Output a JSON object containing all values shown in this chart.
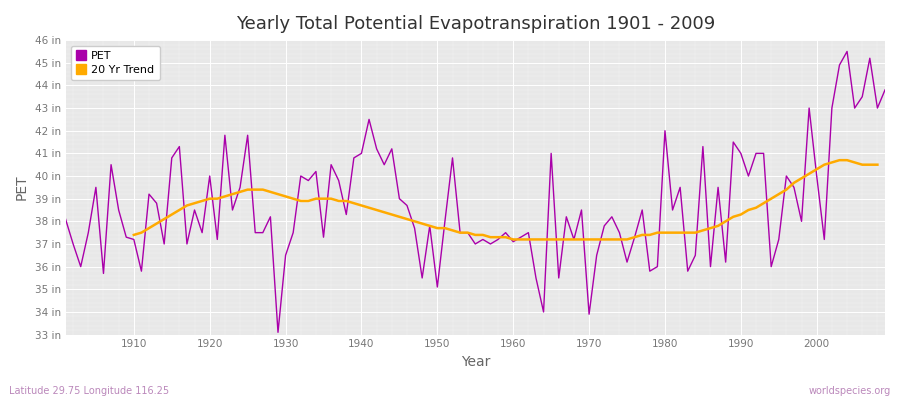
{
  "title": "Yearly Total Potential Evapotranspiration 1901 - 2009",
  "xlabel": "Year",
  "ylabel": "PET",
  "subtitle_left": "Latitude 29.75 Longitude 116.25",
  "subtitle_right": "worldspecies.org",
  "fig_background": "#ffffff",
  "plot_background": "#e8e8e8",
  "pet_color": "#aa00aa",
  "trend_color": "#ffaa00",
  "ylim_min": 33,
  "ylim_max": 46,
  "years": [
    1901,
    1902,
    1903,
    1904,
    1905,
    1906,
    1907,
    1908,
    1909,
    1910,
    1911,
    1912,
    1913,
    1914,
    1915,
    1916,
    1917,
    1918,
    1919,
    1920,
    1921,
    1922,
    1923,
    1924,
    1925,
    1926,
    1927,
    1928,
    1929,
    1930,
    1931,
    1932,
    1933,
    1934,
    1935,
    1936,
    1937,
    1938,
    1939,
    1940,
    1941,
    1942,
    1943,
    1944,
    1945,
    1946,
    1947,
    1948,
    1949,
    1950,
    1951,
    1952,
    1953,
    1954,
    1955,
    1956,
    1957,
    1958,
    1959,
    1960,
    1961,
    1962,
    1963,
    1964,
    1965,
    1966,
    1967,
    1968,
    1969,
    1970,
    1971,
    1972,
    1973,
    1974,
    1975,
    1976,
    1977,
    1978,
    1979,
    1980,
    1981,
    1982,
    1983,
    1984,
    1985,
    1986,
    1987,
    1988,
    1989,
    1990,
    1991,
    1992,
    1993,
    1994,
    1995,
    1996,
    1997,
    1998,
    1999,
    2000,
    2001,
    2002,
    2003,
    2004,
    2005,
    2006,
    2007,
    2008,
    2009
  ],
  "pet_values": [
    38.1,
    37.0,
    36.0,
    37.5,
    39.5,
    35.7,
    40.5,
    38.5,
    37.3,
    37.2,
    35.8,
    39.2,
    38.8,
    37.0,
    40.8,
    41.3,
    37.0,
    38.5,
    37.5,
    40.0,
    37.2,
    41.8,
    38.5,
    39.5,
    41.8,
    37.5,
    37.5,
    38.2,
    33.1,
    36.5,
    37.5,
    40.0,
    39.8,
    40.2,
    37.3,
    40.5,
    39.8,
    38.3,
    40.8,
    41.0,
    42.5,
    41.2,
    40.5,
    41.2,
    39.0,
    38.7,
    37.7,
    35.5,
    37.8,
    35.1,
    38.0,
    40.8,
    37.5,
    37.5,
    37.0,
    37.2,
    37.0,
    37.2,
    37.5,
    37.1,
    37.3,
    37.5,
    35.5,
    34.0,
    41.0,
    35.5,
    38.2,
    37.2,
    38.5,
    33.9,
    36.5,
    37.8,
    38.2,
    37.5,
    36.2,
    37.3,
    38.5,
    35.8,
    36.0,
    42.0,
    38.5,
    39.5,
    35.8,
    36.5,
    41.3,
    36.0,
    39.5,
    36.2,
    41.5,
    41.0,
    40.0,
    41.0,
    41.0,
    36.0,
    37.2,
    40.0,
    39.5,
    38.0,
    43.0,
    40.0,
    37.2,
    43.0,
    44.9,
    45.5,
    43.0,
    43.5,
    45.2,
    43.0,
    43.8
  ],
  "trend_values": [
    null,
    null,
    null,
    null,
    null,
    null,
    null,
    null,
    null,
    37.4,
    37.5,
    37.7,
    37.9,
    38.1,
    38.3,
    38.5,
    38.7,
    38.8,
    38.9,
    39.0,
    39.0,
    39.1,
    39.2,
    39.3,
    39.4,
    39.4,
    39.4,
    39.3,
    39.2,
    39.1,
    39.0,
    38.9,
    38.9,
    39.0,
    39.0,
    39.0,
    38.9,
    38.9,
    38.8,
    38.7,
    38.6,
    38.5,
    38.4,
    38.3,
    38.2,
    38.1,
    38.0,
    37.9,
    37.8,
    37.7,
    37.7,
    37.6,
    37.5,
    37.5,
    37.4,
    37.4,
    37.3,
    37.3,
    37.3,
    37.2,
    37.2,
    37.2,
    37.2,
    37.2,
    37.2,
    37.2,
    37.2,
    37.2,
    37.2,
    37.2,
    37.2,
    37.2,
    37.2,
    37.2,
    37.2,
    37.3,
    37.4,
    37.4,
    37.5,
    37.5,
    37.5,
    37.5,
    37.5,
    37.5,
    37.6,
    37.7,
    37.8,
    38.0,
    38.2,
    38.3,
    38.5,
    38.6,
    38.8,
    39.0,
    39.2,
    39.4,
    39.7,
    39.9,
    40.1,
    40.3,
    40.5,
    40.6,
    40.7,
    40.7,
    40.6,
    40.5,
    40.5,
    40.5
  ]
}
